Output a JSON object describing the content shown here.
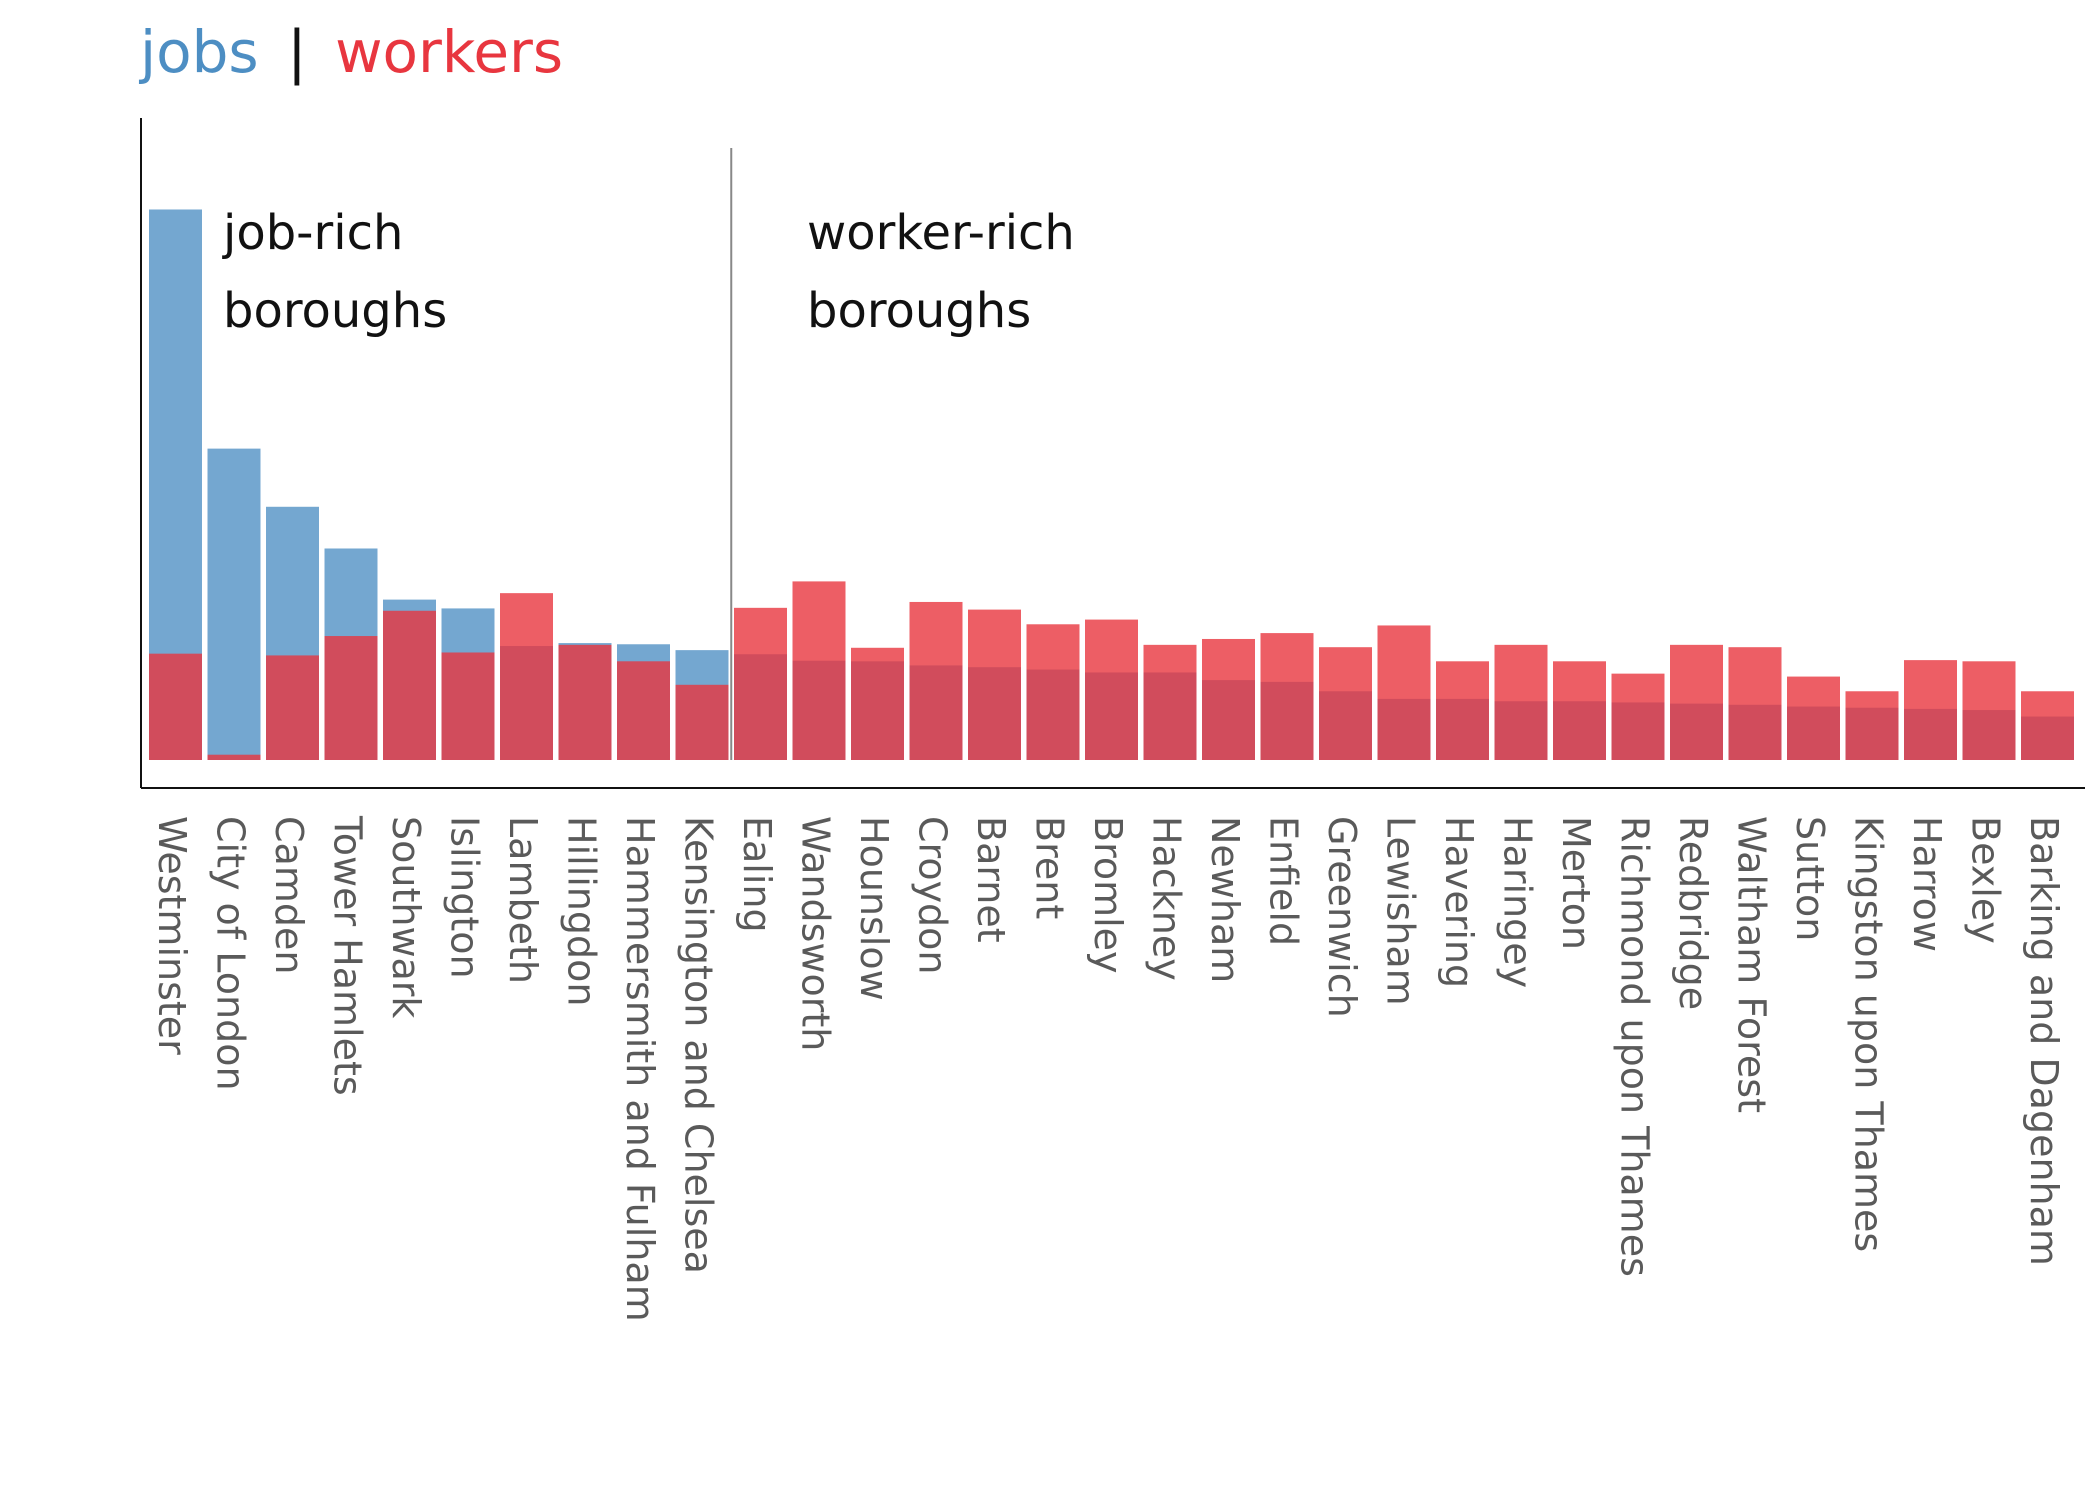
{
  "chart_data": {
    "type": "bar",
    "legend": {
      "jobs_label": "jobs",
      "separator": "|",
      "workers_label": "workers"
    },
    "annotations": [
      {
        "line1": "job-rich",
        "line2": "boroughs"
      },
      {
        "line1": "worker-rich",
        "line2": "boroughs"
      }
    ],
    "divider_after_index": 9,
    "ylim": [
      0,
      100
    ],
    "categories": [
      "Westminster",
      "City of London",
      "Camden",
      "Tower Hamlets",
      "Southwark",
      "Islington",
      "Lambeth",
      "Hillingdon",
      "Hammersmith and Fulham",
      "Kensington and Chelsea",
      "Ealing",
      "Wandsworth",
      "Hounslow",
      "Croydon",
      "Barnet",
      "Brent",
      "Bromley",
      "Hackney",
      "Newham",
      "Enfield",
      "Greenwich",
      "Lewisham",
      "Havering",
      "Haringey",
      "Merton",
      "Richmond upon Thames",
      "Redbridge",
      "Waltham Forest",
      "Sutton",
      "Kingston upon Thames",
      "Harrow",
      "Bexley",
      "Barking and Dagenham"
    ],
    "series": [
      {
        "name": "jobs",
        "color": "#4d8ec3",
        "values": [
          93.7,
          53.0,
          43.1,
          36.0,
          27.3,
          25.8,
          19.4,
          19.9,
          19.7,
          18.7,
          18.0,
          16.9,
          16.8,
          16.1,
          15.8,
          15.4,
          14.9,
          14.9,
          13.6,
          13.3,
          11.7,
          10.4,
          10.4,
          10.0,
          10.0,
          9.8,
          9.6,
          9.4,
          9.1,
          8.9,
          8.7,
          8.5,
          7.4
        ]
      },
      {
        "name": "workers",
        "color": "#e8363f",
        "values": [
          18.1,
          0.9,
          17.8,
          21.1,
          25.4,
          18.3,
          28.4,
          19.6,
          16.8,
          12.8,
          25.9,
          30.4,
          19.1,
          26.9,
          25.6,
          23.1,
          23.9,
          19.6,
          20.6,
          21.6,
          19.2,
          22.9,
          16.8,
          19.6,
          16.8,
          14.7,
          19.6,
          19.2,
          14.2,
          11.7,
          17.0,
          16.8,
          11.7
        ]
      }
    ]
  }
}
